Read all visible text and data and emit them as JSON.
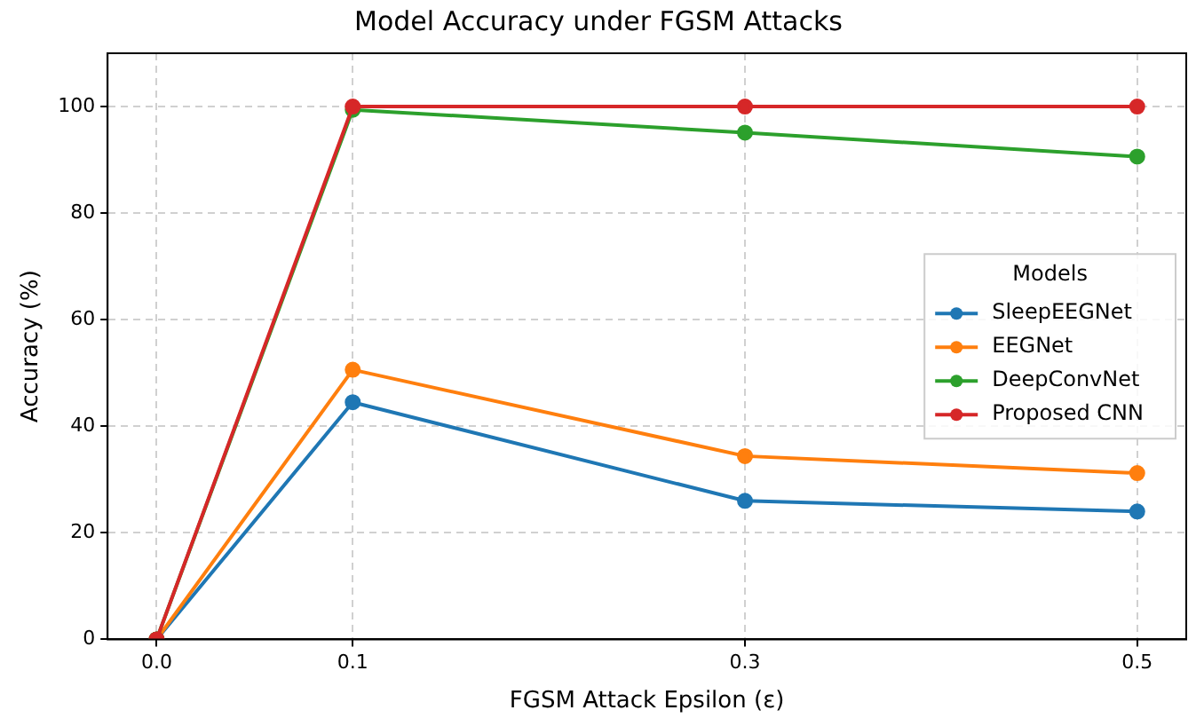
{
  "chart_data": {
    "type": "line",
    "title": "Model Accuracy under FGSM Attacks",
    "xlabel": "FGSM Attack Epsilon (ε)",
    "ylabel": "Accuracy (%)",
    "legend_title": "Models",
    "x": [
      0,
      0.1,
      0.3,
      0.5
    ],
    "series": [
      {
        "name": "SleepEEGNet",
        "color": "#1f77b4",
        "values": [
          0,
          44.5,
          26,
          24
        ]
      },
      {
        "name": "EEGNet",
        "color": "#ff7f0e",
        "values": [
          0,
          50.6,
          34.4,
          31.2
        ]
      },
      {
        "name": "DeepConvNet",
        "color": "#2ca02c",
        "values": [
          0,
          99.4,
          95.1,
          90.6
        ]
      },
      {
        "name": "Proposed CNN",
        "color": "#d62728",
        "values": [
          0,
          100,
          100,
          100
        ]
      }
    ],
    "xlim": [
      -0.025,
      0.525
    ],
    "xticks": [
      {
        "value": 0,
        "label": "0.0"
      },
      0.1,
      0.3,
      0.5
    ],
    "ylim": [
      0,
      110
    ],
    "yticks": [
      0,
      20,
      40,
      60,
      80,
      100
    ],
    "grid": true,
    "legend": "right",
    "marker": "circle",
    "line_style": "solid"
  }
}
